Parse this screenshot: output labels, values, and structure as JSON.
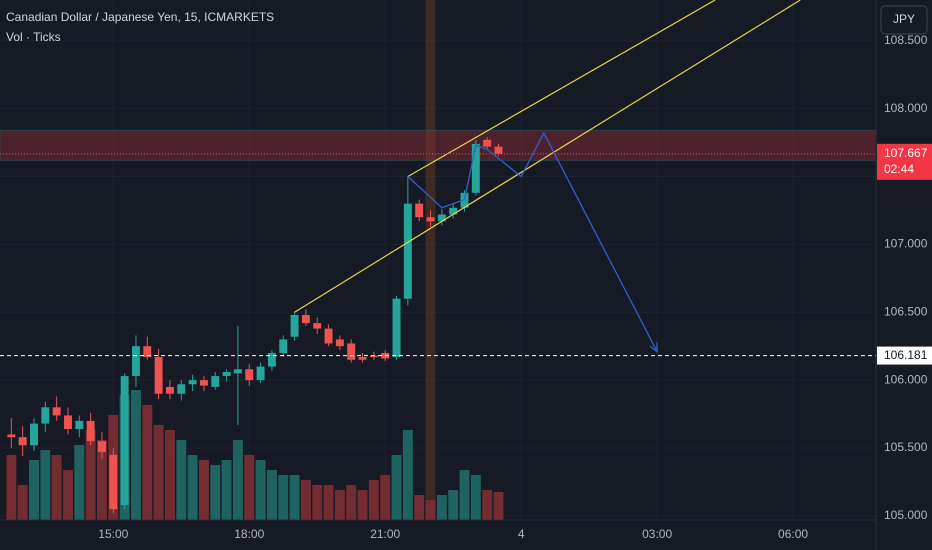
{
  "chart_data": {
    "type": "candlestick",
    "title": "Canadian Dollar / Japanese Yen, 15, ICMARKETS",
    "subtitle": "Vol · Ticks",
    "currency": "JPY",
    "up_color": "#26a69a",
    "down_color": "#ef5350",
    "x": [
      12.75,
      13,
      13.25,
      13.5,
      13.75,
      14,
      14.25,
      14.5,
      14.75,
      15,
      15.25,
      15.5,
      15.75,
      16,
      16.25,
      16.5,
      16.75,
      17,
      17.25,
      17.5,
      17.75,
      18,
      18.25,
      18.5,
      18.75,
      19,
      19.25,
      19.5,
      19.75,
      20,
      20.25,
      20.5,
      20.75,
      21,
      21.25,
      21.5,
      21.75,
      22,
      22.25,
      22.5,
      22.75,
      23,
      23.25,
      23.5
    ],
    "open": [
      105.6,
      105.58,
      105.52,
      105.68,
      105.8,
      105.74,
      105.64,
      105.7,
      105.55,
      105.45,
      105.08,
      106.03,
      106.25,
      106.17,
      105.95,
      105.9,
      105.97,
      106.0,
      105.95,
      106.03,
      106.05,
      106.08,
      106.0,
      106.1,
      106.2,
      106.32,
      106.48,
      106.42,
      106.38,
      106.3,
      106.27,
      106.17,
      106.18,
      106.2,
      106.17,
      106.6,
      107.3,
      107.2,
      107.17,
      107.22,
      107.27,
      107.38,
      107.77,
      107.72
    ],
    "high": [
      105.72,
      105.66,
      105.72,
      105.84,
      105.88,
      105.8,
      105.74,
      105.76,
      105.62,
      105.5,
      106.05,
      106.33,
      106.32,
      106.23,
      106.0,
      106.0,
      106.04,
      106.03,
      106.06,
      106.08,
      106.4,
      106.12,
      106.13,
      106.22,
      106.33,
      106.5,
      106.52,
      106.46,
      106.41,
      106.33,
      106.3,
      106.2,
      106.21,
      106.22,
      106.62,
      107.5,
      107.33,
      107.25,
      107.26,
      107.3,
      107.4,
      107.77,
      107.79,
      107.74
    ],
    "low": [
      105.5,
      105.44,
      105.48,
      105.62,
      105.7,
      105.6,
      105.58,
      105.52,
      105.42,
      105.02,
      105.05,
      105.95,
      106.15,
      105.86,
      105.86,
      105.85,
      105.92,
      105.92,
      105.93,
      105.99,
      105.67,
      105.96,
      105.98,
      106.07,
      106.17,
      106.29,
      106.4,
      106.34,
      106.25,
      106.22,
      106.13,
      106.13,
      106.15,
      106.14,
      106.15,
      106.55,
      107.17,
      107.13,
      107.14,
      107.19,
      107.24,
      107.36,
      107.7,
      107.65
    ],
    "close": [
      105.58,
      105.52,
      105.68,
      105.8,
      105.74,
      105.64,
      105.7,
      105.55,
      105.47,
      105.05,
      106.03,
      106.25,
      106.17,
      105.9,
      105.9,
      105.97,
      106.0,
      105.96,
      106.03,
      106.06,
      106.08,
      106.0,
      106.1,
      106.2,
      106.3,
      106.48,
      106.42,
      106.38,
      106.27,
      106.25,
      106.15,
      106.15,
      106.17,
      106.16,
      106.6,
      107.3,
      107.2,
      107.17,
      107.22,
      107.27,
      107.38,
      107.74,
      107.72,
      107.667
    ],
    "volume": [
      1300,
      700,
      1200,
      1400,
      1300,
      1000,
      1500,
      1800,
      1600,
      2100,
      2500,
      2600,
      2300,
      1900,
      1800,
      1600,
      1300,
      1200,
      1100,
      1200,
      1600,
      1300,
      1200,
      1000,
      900,
      900,
      800,
      700,
      700,
      600,
      700,
      600,
      800,
      900,
      1300,
      1800,
      500,
      400,
      500,
      600,
      1000,
      900,
      600,
      560
    ],
    "xlim": [
      12.5,
      31.83
    ],
    "xticks": [
      {
        "value": 15,
        "label": "15:00"
      },
      {
        "value": 18,
        "label": "18:00"
      },
      {
        "value": 21,
        "label": "21:00"
      },
      {
        "value": 24,
        "label": "4"
      },
      {
        "value": 27,
        "label": "03:00"
      },
      {
        "value": 30,
        "label": "06:00"
      }
    ],
    "ylim": [
      104.97,
      108.8
    ],
    "yticks": [
      {
        "value": 105,
        "label": "105.000"
      },
      {
        "value": 105.5,
        "label": "105.500"
      },
      {
        "value": 106,
        "label": "106.000"
      },
      {
        "value": 106.5,
        "label": "106.500"
      },
      {
        "value": 107,
        "label": "107.000"
      },
      {
        "value": 107.5,
        "label": "107.500"
      },
      {
        "value": 108,
        "label": "108.000"
      },
      {
        "value": 108.5,
        "label": "108.500"
      }
    ],
    "grid": true,
    "last_price": 107.667,
    "countdown": "02:44",
    "horizontal_line": 106.181,
    "zone": [
      107.62,
      107.84
    ],
    "highlight_x": 22,
    "channel": [
      [
        [
          19,
          106.5
        ],
        [
          30.16,
          108.8
        ]
      ],
      [
        [
          21.5,
          107.5
        ],
        [
          28.28,
          108.8
        ]
      ]
    ],
    "projection": [
      [
        21.5,
        107.5
      ],
      [
        22.25,
        107.27
      ],
      [
        22.75,
        107.33
      ],
      [
        23,
        107.73
      ],
      [
        23.25,
        107.7
      ],
      [
        24,
        107.5
      ],
      [
        24.5,
        107.82
      ],
      [
        27,
        106.21
      ]
    ]
  }
}
